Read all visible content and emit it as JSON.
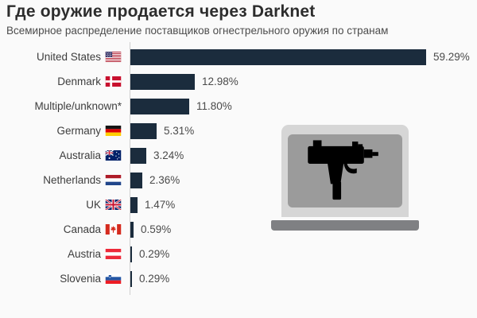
{
  "header": {
    "title": "Где оружие продается через Darknet",
    "subtitle": "Всемирное распределение поставщиков огнестрельного оружия по странам"
  },
  "chart_data": {
    "type": "bar",
    "orientation": "horizontal",
    "title": "Где оружие продается через Darknet",
    "subtitle": "Всемирное распределение поставщиков огнестрельного оружия по странам",
    "categories": [
      "United States",
      "Denmark",
      "Multiple/unknown*",
      "Germany",
      "Australia",
      "Netherlands",
      "UK",
      "Canada",
      "Austria",
      "Slovenia"
    ],
    "values": [
      59.29,
      12.98,
      11.8,
      5.31,
      3.24,
      2.36,
      1.47,
      0.59,
      0.29,
      0.29
    ],
    "value_labels": [
      "59.29%",
      "12.98%",
      "11.80%",
      "5.31%",
      "3.24%",
      "2.36%",
      "1.47%",
      "0.59%",
      "0.29%",
      "0.29%"
    ],
    "flags": [
      "us",
      "dk",
      null,
      "de",
      "au",
      "nl",
      "uk",
      "ca",
      "at",
      "si"
    ],
    "xlim": [
      0,
      63
    ],
    "grid": false,
    "legend": "none",
    "bar_color": "#1b2c3d",
    "axis_color": "#cfcfcf"
  },
  "illustration": {
    "name": "laptop-with-uzi",
    "body_color": "#d6d6d6",
    "screen_color": "#9b9b9b",
    "base_color": "#7f8083",
    "gun_color": "#000000"
  },
  "colors": {
    "background": "#fafafa",
    "title": "#2d2d2d",
    "subtitle": "#4c4c4c",
    "label": "#3d3d3d",
    "value": "#4a4a4a"
  }
}
